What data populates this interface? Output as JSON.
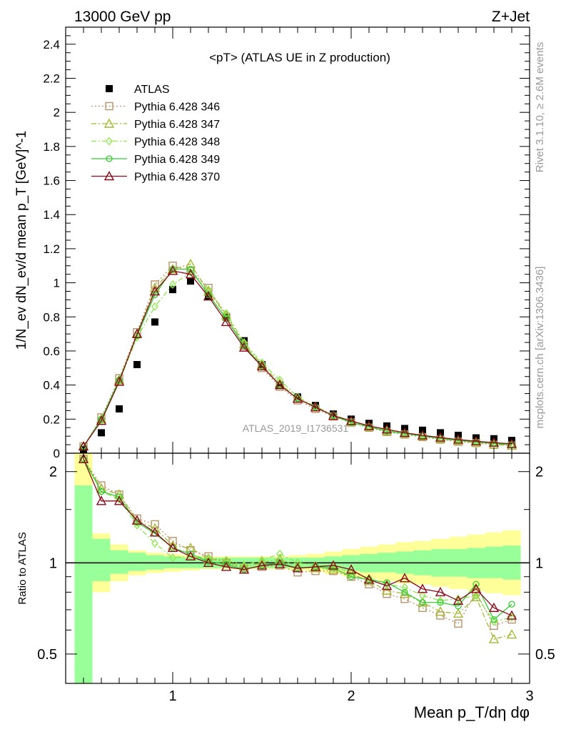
{
  "header": {
    "left": "13000 GeV pp",
    "right": "Z+Jet"
  },
  "side_labels": {
    "rivet": "Rivet 3.1.10, ≥ 2.6M events",
    "mcplots": "mcplots.cern.ch [arXiv:1306.3436]"
  },
  "chart_data": [
    {
      "type": "scatter",
      "panel": "main",
      "title": "<pT> (ATLAS UE in Z production)",
      "ylabel": "1/N_ev dN_ev/d mean p_T [GeV]^-1",
      "xlabel": "",
      "watermark": "ATLAS_2019_I1736531",
      "xlim": [
        0.4,
        3.0
      ],
      "ylim": [
        0,
        2.5
      ],
      "grid": false,
      "legend_position": "top-left",
      "x_ticks": [
        1,
        2,
        3
      ],
      "y_ticks": [
        0,
        0.2,
        0.4,
        0.6,
        0.8,
        1,
        1.2,
        1.4,
        1.6,
        1.8,
        2,
        2.2,
        2.4
      ],
      "x": [
        0.5,
        0.6,
        0.7,
        0.8,
        0.9,
        1.0,
        1.1,
        1.2,
        1.3,
        1.4,
        1.5,
        1.6,
        1.7,
        1.8,
        1.9,
        2.0,
        2.1,
        2.2,
        2.3,
        2.4,
        2.5,
        2.6,
        2.7,
        2.8,
        2.9
      ],
      "series": [
        {
          "name": "ATLAS",
          "color": "#000000",
          "marker": "square-filled",
          "line": "none",
          "values": [
            0.02,
            0.12,
            0.26,
            0.52,
            0.77,
            0.96,
            1.01,
            0.92,
            0.8,
            0.66,
            0.52,
            0.4,
            0.33,
            0.28,
            0.23,
            0.2,
            0.175,
            0.16,
            0.145,
            0.135,
            0.12,
            0.105,
            0.09,
            0.085,
            0.075
          ]
        },
        {
          "name": "Pythia 6.428 346",
          "color": "#b8946a",
          "marker": "square-open",
          "line": "dotted",
          "values": [
            0.04,
            0.21,
            0.44,
            0.71,
            0.99,
            1.1,
            1.07,
            0.97,
            0.8,
            0.63,
            0.5,
            0.39,
            0.31,
            0.26,
            0.215,
            0.18,
            0.15,
            0.125,
            0.11,
            0.095,
            0.08,
            0.068,
            0.06,
            0.05,
            0.045
          ]
        },
        {
          "name": "Pythia 6.428 347",
          "color": "#a6b833",
          "marker": "triangle-open",
          "line": "dash-dot",
          "values": [
            0.04,
            0.2,
            0.43,
            0.7,
            0.97,
            1.08,
            1.11,
            0.95,
            0.81,
            0.64,
            0.52,
            0.41,
            0.32,
            0.27,
            0.22,
            0.185,
            0.155,
            0.13,
            0.115,
            0.1,
            0.085,
            0.072,
            0.062,
            0.052,
            0.045
          ]
        },
        {
          "name": "Pythia 6.428 348",
          "color": "#8ee64c",
          "marker": "diamond-open",
          "line": "dash-dot",
          "values": [
            0.04,
            0.19,
            0.42,
            0.68,
            0.86,
            0.99,
            1.06,
            0.96,
            0.82,
            0.65,
            0.53,
            0.43,
            0.33,
            0.275,
            0.225,
            0.19,
            0.16,
            0.135,
            0.12,
            0.105,
            0.09,
            0.08,
            0.07,
            0.06,
            0.05
          ]
        },
        {
          "name": "Pythia 6.428 349",
          "color": "#33cc33",
          "marker": "circle-open",
          "line": "solid",
          "values": [
            0.04,
            0.2,
            0.43,
            0.69,
            0.93,
            1.08,
            1.08,
            0.93,
            0.79,
            0.63,
            0.51,
            0.4,
            0.32,
            0.27,
            0.22,
            0.18,
            0.155,
            0.13,
            0.115,
            0.1,
            0.087,
            0.075,
            0.066,
            0.057,
            0.05
          ]
        },
        {
          "name": "Pythia 6.428 370",
          "color": "#8b0a1a",
          "marker": "triangle-open",
          "line": "solid",
          "values": [
            0.04,
            0.19,
            0.42,
            0.7,
            0.95,
            1.07,
            1.05,
            0.92,
            0.77,
            0.62,
            0.51,
            0.4,
            0.32,
            0.27,
            0.22,
            0.19,
            0.16,
            0.14,
            0.12,
            0.105,
            0.092,
            0.08,
            0.07,
            0.062,
            0.055
          ]
        }
      ]
    },
    {
      "type": "line",
      "panel": "ratio",
      "ylabel": "Ratio to ATLAS",
      "xlabel": "Mean p_T/dη dφ",
      "xlim": [
        0.4,
        3.0
      ],
      "ylim": [
        0.4,
        2.3
      ],
      "y_scale": "log",
      "grid": false,
      "x_ticks": [
        1,
        2,
        3
      ],
      "y_ticks": [
        0.5,
        1,
        2
      ],
      "reference_line": 1,
      "x": [
        0.5,
        0.6,
        0.7,
        0.8,
        0.9,
        1.0,
        1.1,
        1.2,
        1.3,
        1.4,
        1.5,
        1.6,
        1.7,
        1.8,
        1.9,
        2.0,
        2.1,
        2.2,
        2.3,
        2.4,
        2.5,
        2.6,
        2.7,
        2.8,
        2.9
      ],
      "uncertainty_bands": [
        {
          "name": "ATLAS stat",
          "color": "#99ff99",
          "upper": [
            1.8,
            1.2,
            1.1,
            1.08,
            1.06,
            1.05,
            1.04,
            1.04,
            1.04,
            1.04,
            1.04,
            1.04,
            1.04,
            1.04,
            1.05,
            1.06,
            1.07,
            1.08,
            1.09,
            1.1,
            1.11,
            1.11,
            1.12,
            1.13,
            1.14
          ],
          "lower": [
            0.4,
            0.87,
            0.92,
            0.94,
            0.95,
            0.96,
            0.96,
            0.96,
            0.96,
            0.96,
            0.96,
            0.96,
            0.96,
            0.96,
            0.95,
            0.94,
            0.93,
            0.93,
            0.92,
            0.91,
            0.9,
            0.9,
            0.89,
            0.89,
            0.88
          ]
        },
        {
          "name": "ATLAS total",
          "color": "#ffff99",
          "upper": [
            2.3,
            1.25,
            1.15,
            1.1,
            1.08,
            1.07,
            1.06,
            1.05,
            1.05,
            1.05,
            1.05,
            1.05,
            1.06,
            1.07,
            1.09,
            1.11,
            1.13,
            1.15,
            1.17,
            1.18,
            1.2,
            1.22,
            1.24,
            1.26,
            1.28
          ]
        }
      ],
      "series": [
        {
          "name": "Pythia 6.428 346",
          "color": "#b8946a",
          "marker": "square-open",
          "line": "dotted",
          "values": [
            2.2,
            1.8,
            1.68,
            1.4,
            1.34,
            1.18,
            1.1,
            1.05,
            1.0,
            0.96,
            0.97,
            0.98,
            0.93,
            0.94,
            0.94,
            0.9,
            0.85,
            0.79,
            0.76,
            0.71,
            0.67,
            0.63,
            0.8,
            0.62,
            0.65
          ]
        },
        {
          "name": "Pythia 6.428 347",
          "color": "#a6b833",
          "marker": "triangle-open",
          "line": "dash-dot",
          "values": [
            2.2,
            1.76,
            1.68,
            1.38,
            1.3,
            1.14,
            1.12,
            1.03,
            1.01,
            0.97,
            1.0,
            1.03,
            0.97,
            0.96,
            0.95,
            0.92,
            0.87,
            0.81,
            0.79,
            0.74,
            0.69,
            0.68,
            0.77,
            0.56,
            0.58
          ]
        },
        {
          "name": "Pythia 6.428 348",
          "color": "#8ee64c",
          "marker": "diamond-open",
          "line": "dash-dot",
          "values": [
            2.2,
            1.72,
            1.62,
            1.33,
            1.16,
            1.04,
            1.05,
            1.04,
            1.02,
            0.98,
            1.02,
            1.07,
            1.0,
            0.98,
            0.97,
            0.93,
            0.89,
            0.85,
            0.83,
            0.78,
            0.75,
            0.76,
            0.78,
            0.64,
            0.66
          ]
        },
        {
          "name": "Pythia 6.428 349",
          "color": "#33cc33",
          "marker": "circle-open",
          "line": "solid",
          "values": [
            2.2,
            1.72,
            1.65,
            1.36,
            1.25,
            1.12,
            1.07,
            1.01,
            0.99,
            0.95,
            0.98,
            1.0,
            0.96,
            0.97,
            0.96,
            0.9,
            0.88,
            0.86,
            0.8,
            0.74,
            0.74,
            0.72,
            0.85,
            0.65,
            0.73
          ]
        },
        {
          "name": "Pythia 6.428 370",
          "color": "#8b0a1a",
          "marker": "triangle-open",
          "line": "solid",
          "values": [
            2.2,
            1.6,
            1.6,
            1.38,
            1.26,
            1.12,
            1.05,
            1.0,
            0.97,
            0.95,
            0.98,
            0.99,
            0.96,
            0.97,
            0.98,
            0.95,
            0.88,
            0.84,
            0.89,
            0.82,
            0.8,
            0.75,
            0.82,
            0.71,
            0.67
          ]
        }
      ]
    }
  ]
}
